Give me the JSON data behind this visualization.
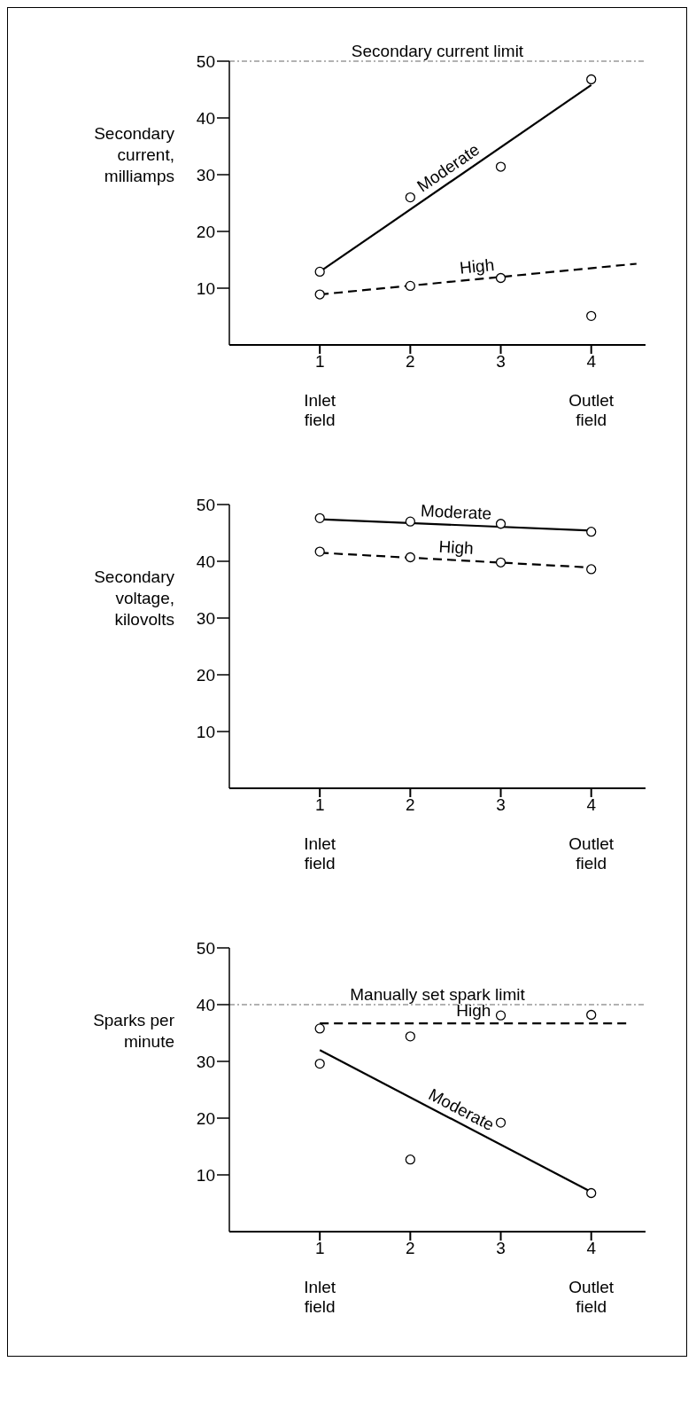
{
  "chart_data": [
    {
      "type": "scatter",
      "ylabel": "Secondary current, milliamps",
      "xlim": [
        0,
        4.6
      ],
      "xticks": [
        1,
        2,
        3,
        4
      ],
      "ylim": [
        0,
        50
      ],
      "yticks": [
        10,
        20,
        30,
        40,
        50
      ],
      "annotations": [
        "Inlet field",
        "Outlet field"
      ],
      "ref_lines": [
        {
          "axis": "y",
          "value": 50,
          "label": "Secondary current limit",
          "color": "#666666",
          "line_style": "dashed"
        }
      ],
      "series": [
        {
          "color": "#000000",
          "marker": "circle",
          "x": [
            1,
            2,
            3,
            4,
            1,
            2,
            3,
            4
          ],
          "values": [
            12.9,
            26.0,
            31.4,
            46.8,
            8.9,
            10.4,
            11.8,
            5.1
          ]
        },
        {
          "type": "line",
          "name": "Moderate",
          "color": "#000000",
          "line_style": "solid",
          "x": [
            1,
            4
          ],
          "values": [
            12.9,
            45.8
          ]
        },
        {
          "type": "line",
          "name": "High",
          "color": "#000000",
          "line_style": "dashed",
          "x": [
            1,
            4.5
          ],
          "values": [
            8.9,
            14.3
          ]
        }
      ]
    },
    {
      "type": "scatter",
      "ylabel": "Secondary voltage, kilovolts",
      "xlim": [
        0,
        4.6
      ],
      "xticks": [
        1,
        2,
        3,
        4
      ],
      "ylim": [
        0,
        50
      ],
      "yticks": [
        10,
        20,
        30,
        40,
        50
      ],
      "annotations": [
        "Inlet field",
        "Outlet field"
      ],
      "series": [
        {
          "color": "#000000",
          "marker": "circle",
          "x": [
            1,
            2,
            3,
            4,
            1,
            2,
            3,
            4
          ],
          "values": [
            47.6,
            47.0,
            46.6,
            45.2,
            41.7,
            40.7,
            39.8,
            38.6
          ]
        },
        {
          "type": "line",
          "name": "Moderate",
          "color": "#000000",
          "line_style": "solid",
          "x": [
            1,
            4
          ],
          "values": [
            47.4,
            45.4
          ]
        },
        {
          "type": "line",
          "name": "High",
          "color": "#000000",
          "line_style": "dashed",
          "x": [
            1,
            4
          ],
          "values": [
            41.5,
            38.9
          ]
        }
      ]
    },
    {
      "type": "scatter",
      "ylabel": "Sparks per minute",
      "xlim": [
        0,
        4.6
      ],
      "xticks": [
        1,
        2,
        3,
        4
      ],
      "ylim": [
        0,
        50
      ],
      "yticks": [
        10,
        20,
        30,
        40,
        50
      ],
      "annotations": [
        "Inlet field",
        "Outlet field"
      ],
      "ref_lines": [
        {
          "axis": "y",
          "value": 40,
          "label": "Manually set spark limit",
          "color": "#666666",
          "line_style": "dashed"
        }
      ],
      "series": [
        {
          "color": "#000000",
          "marker": "circle",
          "x": [
            1,
            2,
            3,
            4,
            1,
            2,
            3,
            4
          ],
          "values": [
            35.8,
            34.4,
            38.1,
            38.2,
            29.6,
            12.7,
            19.2,
            6.8
          ]
        },
        {
          "type": "line",
          "name": "Moderate",
          "color": "#000000",
          "line_style": "solid",
          "x": [
            1,
            4
          ],
          "values": [
            32.0,
            7.0
          ]
        },
        {
          "type": "line",
          "name": "High",
          "color": "#000000",
          "line_style": "dashed",
          "x": [
            1,
            4.4
          ],
          "values": [
            36.7,
            36.7
          ]
        }
      ]
    }
  ]
}
